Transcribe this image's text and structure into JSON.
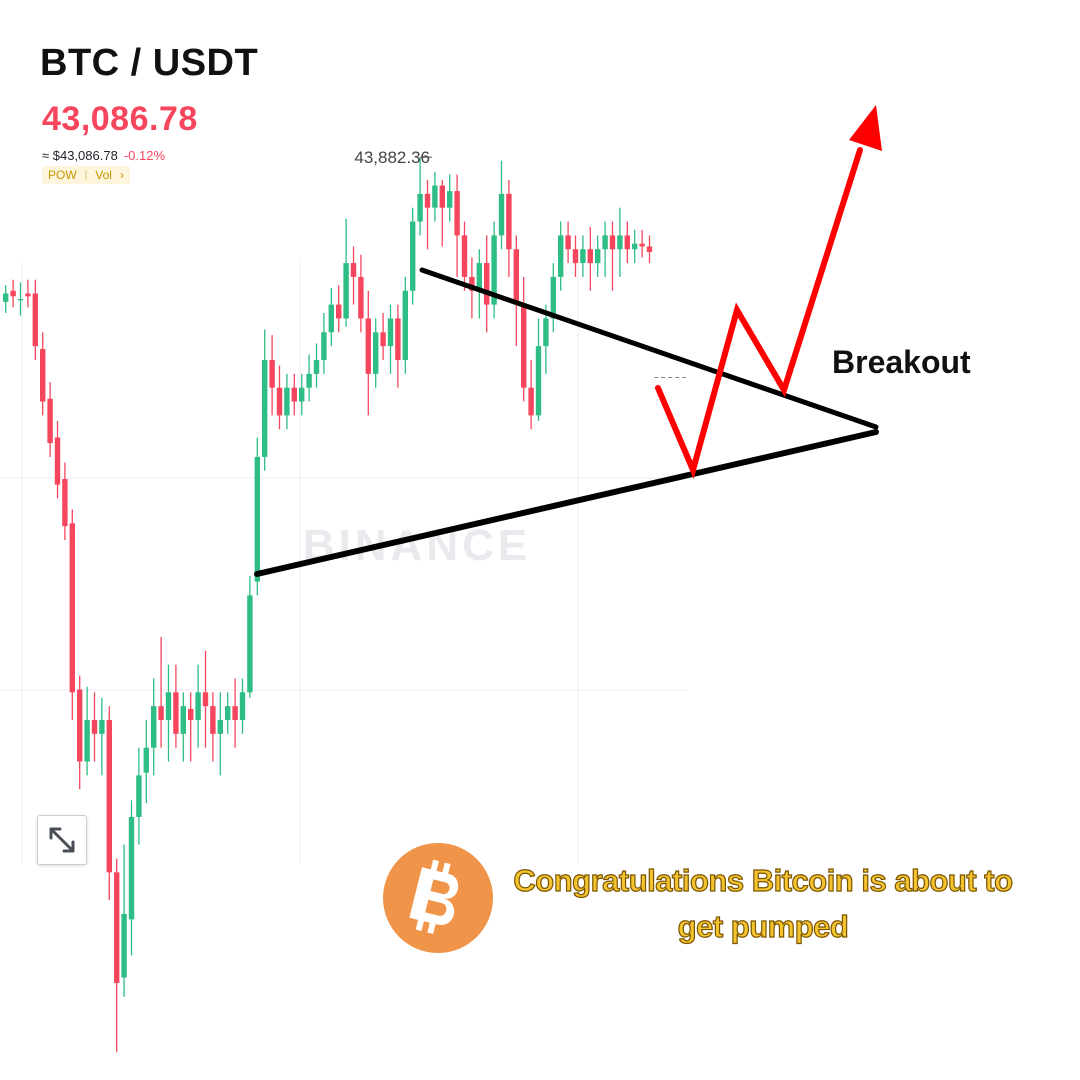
{
  "header": {
    "pair": "BTC / USDT",
    "price": "43,086.78",
    "usd_equiv": "≈ $43,086.78",
    "change": "-0.12%",
    "tag_pow": "POW",
    "tag_vol": "Vol",
    "tag_arrow": "›"
  },
  "watermark": "BINANCE",
  "annotations": {
    "breakout": "Breakout",
    "banner": "Congratulations Bitcoin is about to get pumped"
  },
  "icons": {
    "expand": "expand-icon",
    "bitcoin": "bitcoin-logo-icon"
  },
  "colors": {
    "bull": "#2ebd85",
    "bear": "#f6465d",
    "down_text": "#f6465d",
    "trendline": "#000000",
    "projection": "#ff0000",
    "bitcoin_orange": "#f0944a",
    "banner_text": "#f4c430",
    "tag_bg": "#fdf6dc",
    "tag_text": "#c99400"
  },
  "chart_data": {
    "type": "candlestick",
    "ylim": [
      40550,
      44450
    ],
    "high_label": "43,882.36",
    "high_value": 43882.36,
    "last_price": 43086.78,
    "candles": [
      [
        43360,
        43390,
        43320,
        43420
      ],
      [
        43400,
        43380,
        43340,
        43440
      ],
      [
        43370,
        43370,
        43310,
        43430
      ],
      [
        43390,
        43380,
        43340,
        43440
      ],
      [
        43390,
        43200,
        43150,
        43440
      ],
      [
        43190,
        43000,
        42950,
        43250
      ],
      [
        43010,
        42850,
        42800,
        43070
      ],
      [
        42870,
        42700,
        42650,
        42930
      ],
      [
        42720,
        42550,
        42500,
        42780
      ],
      [
        42560,
        41950,
        41850,
        42610
      ],
      [
        41960,
        41700,
        41600,
        42010
      ],
      [
        41700,
        41850,
        41650,
        41970
      ],
      [
        41850,
        41800,
        41700,
        41950
      ],
      [
        41800,
        41850,
        41650,
        41930
      ],
      [
        41850,
        41300,
        41200,
        41900
      ],
      [
        41300,
        40900,
        40650,
        41350
      ],
      [
        40920,
        41150,
        40850,
        41400
      ],
      [
        41130,
        41500,
        41000,
        41560
      ],
      [
        41500,
        41650,
        41400,
        41750
      ],
      [
        41660,
        41750,
        41550,
        41850
      ],
      [
        41750,
        41900,
        41650,
        42000
      ],
      [
        41900,
        41850,
        41750,
        42150
      ],
      [
        41850,
        41950,
        41700,
        42050
      ],
      [
        41950,
        41800,
        41750,
        42050
      ],
      [
        41800,
        41900,
        41700,
        41950
      ],
      [
        41890,
        41850,
        41700,
        41950
      ],
      [
        41850,
        41950,
        41750,
        42050
      ],
      [
        41950,
        41900,
        41750,
        42100
      ],
      [
        41900,
        41800,
        41700,
        41950
      ],
      [
        41800,
        41850,
        41650,
        41950
      ],
      [
        41850,
        41900,
        41800,
        41950
      ],
      [
        41900,
        41850,
        41750,
        42000
      ],
      [
        41850,
        41950,
        41800,
        42000
      ],
      [
        41950,
        42300,
        41930,
        42370
      ],
      [
        42350,
        42800,
        42300,
        42870
      ],
      [
        42800,
        43150,
        42750,
        43260
      ],
      [
        43150,
        43050,
        42950,
        43240
      ],
      [
        43050,
        42950,
        42900,
        43130
      ],
      [
        42950,
        43050,
        42900,
        43100
      ],
      [
        43050,
        43000,
        42950,
        43100
      ],
      [
        43000,
        43050,
        42950,
        43100
      ],
      [
        43050,
        43100,
        43000,
        43170
      ],
      [
        43100,
        43150,
        43050,
        43210
      ],
      [
        43150,
        43250,
        43100,
        43320
      ],
      [
        43250,
        43350,
        43200,
        43410
      ],
      [
        43350,
        43300,
        43250,
        43420
      ],
      [
        43300,
        43500,
        43270,
        43660
      ],
      [
        43500,
        43450,
        43350,
        43560
      ],
      [
        43450,
        43300,
        43250,
        43530
      ],
      [
        43300,
        43100,
        42950,
        43400
      ],
      [
        43100,
        43250,
        43050,
        43300
      ],
      [
        43250,
        43200,
        43150,
        43320
      ],
      [
        43200,
        43300,
        43100,
        43350
      ],
      [
        43300,
        43150,
        43050,
        43350
      ],
      [
        43150,
        43400,
        43100,
        43450
      ],
      [
        43400,
        43650,
        43350,
        43700
      ],
      [
        43650,
        43750,
        43600,
        43880
      ],
      [
        43750,
        43700,
        43550,
        43800
      ],
      [
        43700,
        43780,
        43650,
        43830
      ],
      [
        43780,
        43700,
        43560,
        43800
      ],
      [
        43700,
        43760,
        43650,
        43820
      ],
      [
        43760,
        43600,
        43450,
        43820
      ],
      [
        43600,
        43450,
        43400,
        43650
      ],
      [
        43450,
        43400,
        43300,
        43520
      ],
      [
        43400,
        43500,
        43300,
        43550
      ],
      [
        43500,
        43350,
        43250,
        43600
      ],
      [
        43350,
        43600,
        43300,
        43650
      ],
      [
        43600,
        43750,
        43550,
        43870
      ],
      [
        43750,
        43550,
        43450,
        43800
      ],
      [
        43550,
        43350,
        43200,
        43600
      ],
      [
        43350,
        43050,
        43000,
        43450
      ],
      [
        43050,
        42950,
        42900,
        43150
      ],
      [
        42950,
        43200,
        42930,
        43300
      ],
      [
        43200,
        43300,
        43100,
        43350
      ],
      [
        43300,
        43450,
        43250,
        43500
      ],
      [
        43450,
        43600,
        43400,
        43650
      ],
      [
        43600,
        43550,
        43500,
        43650
      ],
      [
        43550,
        43500,
        43450,
        43600
      ],
      [
        43500,
        43550,
        43450,
        43600
      ],
      [
        43550,
        43500,
        43400,
        43630
      ],
      [
        43500,
        43550,
        43450,
        43600
      ],
      [
        43550,
        43600,
        43450,
        43650
      ],
      [
        43600,
        43550,
        43400,
        43650
      ],
      [
        43550,
        43600,
        43450,
        43700
      ],
      [
        43600,
        43550,
        43500,
        43650
      ],
      [
        43550,
        43570,
        43500,
        43620
      ],
      [
        43570,
        43560,
        43520,
        43620
      ],
      [
        43560,
        43540,
        43500,
        43600
      ]
    ]
  }
}
